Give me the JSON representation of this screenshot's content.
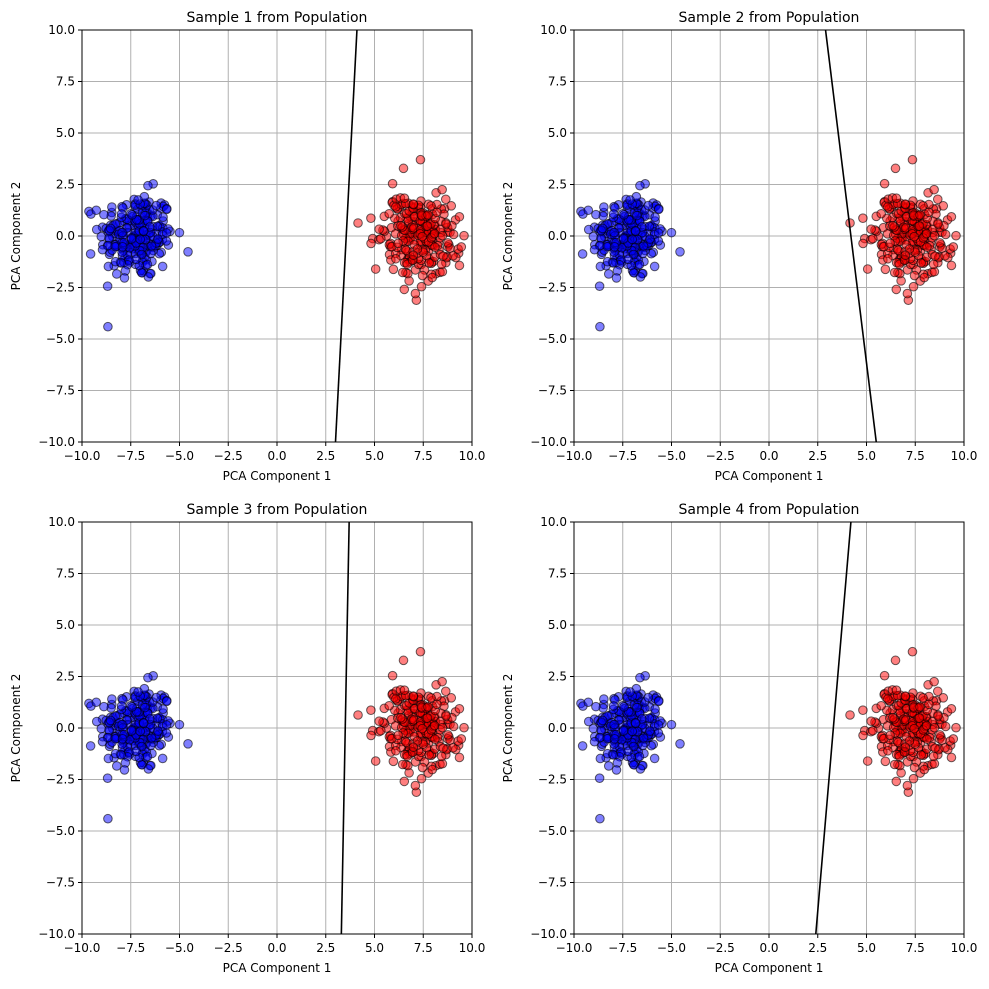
{
  "chart_data": [
    {
      "type": "scatter",
      "title": "Sample 1 from Population",
      "xlabel": "PCA Component 1",
      "ylabel": "PCA Component 2",
      "xlim": [
        -10,
        10
      ],
      "ylim": [
        -10,
        10
      ],
      "xticks": [
        "−10.0",
        "−7.5",
        "−5.0",
        "−2.5",
        "0.0",
        "2.5",
        "5.0",
        "7.5",
        "10.0"
      ],
      "yticks": [
        "−10.0",
        "−7.5",
        "−5.0",
        "−2.5",
        "0.0",
        "2.5",
        "5.0",
        "7.5",
        "10.0"
      ],
      "grid": true,
      "series": [
        {
          "color": "#0000ff",
          "center": [
            -7.2,
            0.0
          ],
          "count": 250
        },
        {
          "color": "#ff0000",
          "center": [
            7.2,
            0.0
          ],
          "count": 250
        }
      ],
      "boundary": [
        [
          3.0,
          -10.0
        ],
        [
          4.1,
          10.0
        ]
      ]
    },
    {
      "type": "scatter",
      "title": "Sample 2 from Population",
      "xlabel": "PCA Component 1",
      "ylabel": "PCA Component 2",
      "xlim": [
        -10,
        10
      ],
      "ylim": [
        -10,
        10
      ],
      "xticks": [
        "−10.0",
        "−7.5",
        "−5.0",
        "−2.5",
        "0.0",
        "2.5",
        "5.0",
        "7.5",
        "10.0"
      ],
      "yticks": [
        "−10.0",
        "−7.5",
        "−5.0",
        "−2.5",
        "0.0",
        "2.5",
        "5.0",
        "7.5",
        "10.0"
      ],
      "grid": true,
      "series": [
        {
          "color": "#0000ff",
          "center": [
            -7.2,
            0.0
          ],
          "count": 250
        },
        {
          "color": "#ff0000",
          "center": [
            7.2,
            0.0
          ],
          "count": 250
        }
      ],
      "boundary": [
        [
          2.9,
          10.0
        ],
        [
          5.5,
          -10.0
        ]
      ]
    },
    {
      "type": "scatter",
      "title": "Sample 3 from Population",
      "xlabel": "PCA Component 1",
      "ylabel": "PCA Component 2",
      "xlim": [
        -10,
        10
      ],
      "ylim": [
        -10,
        10
      ],
      "xticks": [
        "−10.0",
        "−7.5",
        "−5.0",
        "−2.5",
        "0.0",
        "2.5",
        "5.0",
        "7.5",
        "10.0"
      ],
      "yticks": [
        "−10.0",
        "−7.5",
        "−5.0",
        "−2.5",
        "0.0",
        "2.5",
        "5.0",
        "7.5",
        "10.0"
      ],
      "grid": true,
      "series": [
        {
          "color": "#0000ff",
          "center": [
            -7.2,
            0.0
          ],
          "count": 250
        },
        {
          "color": "#ff0000",
          "center": [
            7.2,
            0.0
          ],
          "count": 250
        }
      ],
      "boundary": [
        [
          3.3,
          -10.0
        ],
        [
          3.7,
          10.0
        ]
      ]
    },
    {
      "type": "scatter",
      "title": "Sample 4 from Population",
      "xlabel": "PCA Component 1",
      "ylabel": "PCA Component 2",
      "xlim": [
        -10,
        10
      ],
      "ylim": [
        -10,
        10
      ],
      "xticks": [
        "−10.0",
        "−7.5",
        "−5.0",
        "−2.5",
        "0.0",
        "2.5",
        "5.0",
        "7.5",
        "10.0"
      ],
      "yticks": [
        "−10.0",
        "−7.5",
        "−5.0",
        "−2.5",
        "0.0",
        "2.5",
        "5.0",
        "7.5",
        "10.0"
      ],
      "grid": true,
      "series": [
        {
          "color": "#0000ff",
          "center": [
            -7.2,
            0.0
          ],
          "count": 250
        },
        {
          "color": "#ff0000",
          "center": [
            7.2,
            0.0
          ],
          "count": 250
        }
      ],
      "boundary": [
        [
          2.4,
          -10.0
        ],
        [
          4.2,
          10.0
        ]
      ]
    }
  ]
}
